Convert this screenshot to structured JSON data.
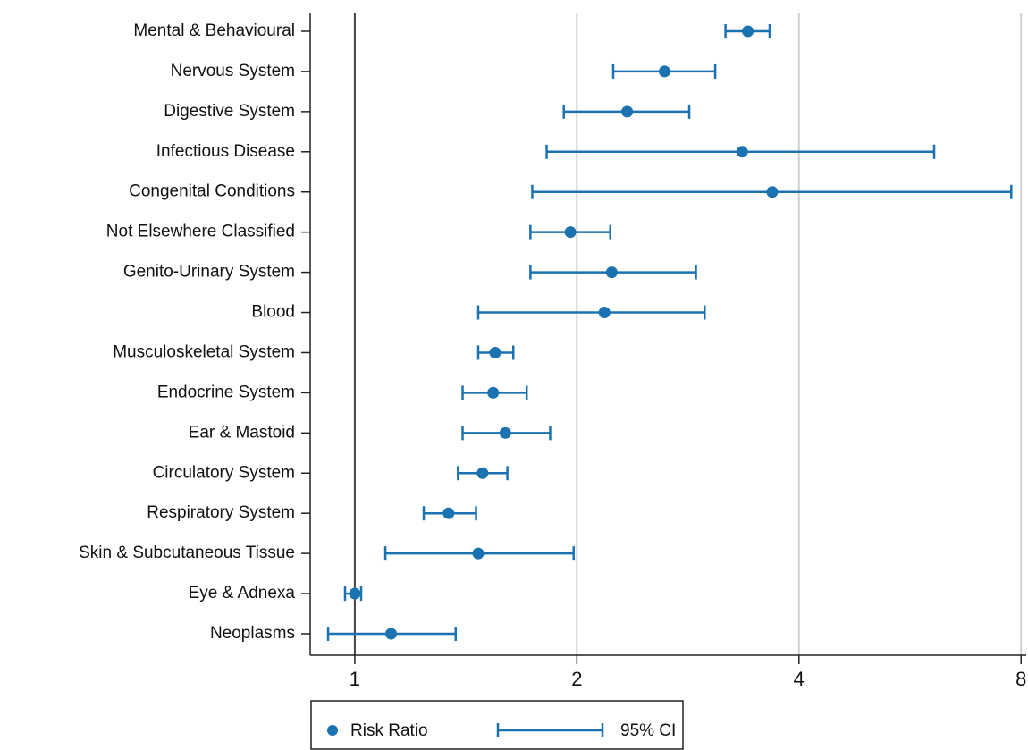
{
  "chart_data": {
    "type": "forest",
    "categories": [
      "Mental & Behavioural",
      "Nervous System",
      "Digestive System",
      "Infectious Disease",
      "Congenital Conditions",
      "Not Elsewhere Classified",
      "Genito-Urinary System",
      "Blood",
      "Musculoskeletal System",
      "Endocrine System",
      "Ear & Mastoid",
      "Circulatory System",
      "Respiratory System",
      "Skin & Subcutaneous Tissue",
      "Eye & Adnexa",
      "Neoplasms"
    ],
    "series": [
      {
        "name": "Risk Ratio",
        "color": "#1a72b0",
        "values": [
          3.41,
          2.63,
          2.34,
          3.35,
          3.68,
          1.96,
          2.23,
          2.18,
          1.55,
          1.54,
          1.6,
          1.49,
          1.34,
          1.47,
          1.0,
          1.12
        ]
      }
    ],
    "ci": {
      "name": "95% CI",
      "color": "#1a72b0",
      "lower": [
        3.18,
        2.24,
        1.92,
        1.82,
        1.74,
        1.73,
        1.73,
        1.47,
        1.47,
        1.4,
        1.4,
        1.38,
        1.24,
        1.1,
        0.97,
        0.92
      ],
      "upper": [
        3.65,
        3.08,
        2.84,
        6.1,
        7.76,
        2.22,
        2.9,
        2.98,
        1.64,
        1.71,
        1.84,
        1.61,
        1.46,
        1.98,
        1.02,
        1.37
      ]
    },
    "xscale": "log",
    "xlim": [
      0.87,
      8.13
    ],
    "xticks": [
      1,
      2,
      4,
      8
    ],
    "grid": true,
    "ref_line": 1
  }
}
